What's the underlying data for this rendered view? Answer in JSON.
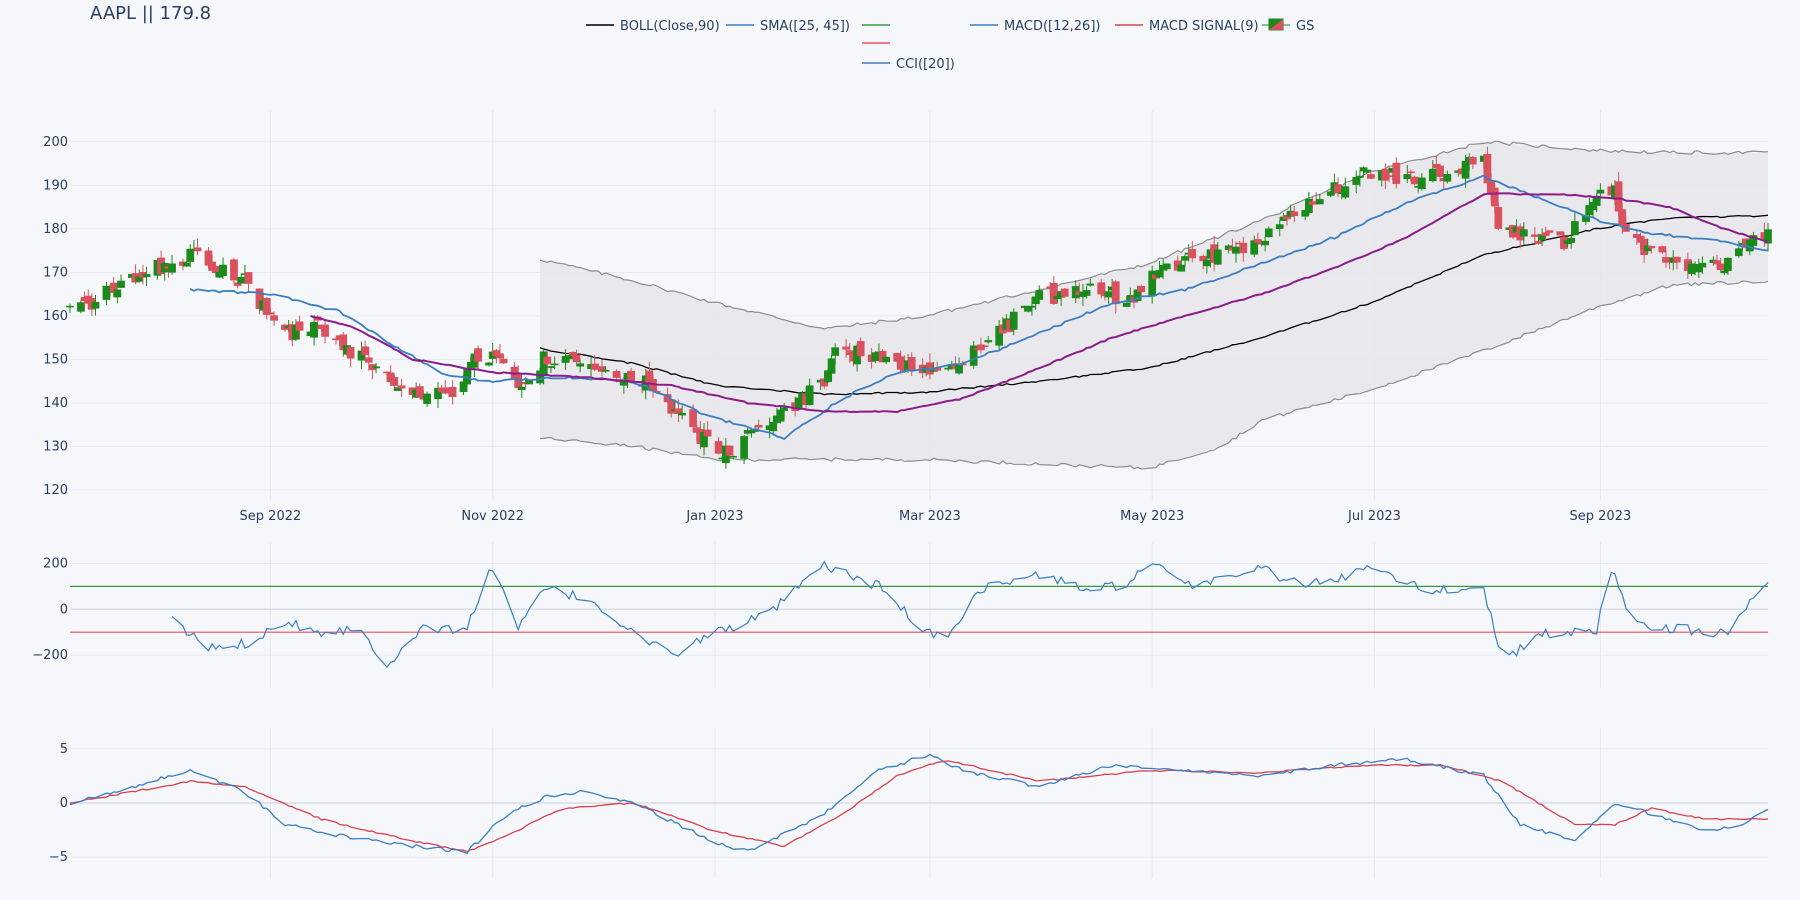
{
  "chart_data": {
    "type": "candlestick",
    "title": "AAPL || 179.8",
    "grid": true,
    "legend_placement": "top-center",
    "colors": {
      "increasing": "#1a8a1a",
      "decreasing": "#d9505e",
      "boll_mid": "#000000",
      "boll_band": "#8c8c8c",
      "boll_fill": "#e6e6ea",
      "sma25": "#3a7fc1",
      "sma45": "#8b1c8b",
      "cci": "#3a7fc1",
      "cci_upper": "#3a9a3a",
      "cci_lower": "#e25260",
      "macd": "#3a7fc1",
      "macd_signal": "#d9404e"
    },
    "legend": [
      {
        "label": "BOLL(Close,90)",
        "key": "boll_mid",
        "kind": "line"
      },
      {
        "label": "SMA([25, 45])",
        "key": "sma25",
        "kind": "line"
      },
      {
        "label": "",
        "key": "cci_upper",
        "kind": "line"
      },
      {
        "label": "",
        "key": "cci_lower",
        "kind": "line"
      },
      {
        "label": "CCI([20])",
        "key": "cci",
        "kind": "line"
      },
      {
        "label": "MACD([12,26])",
        "key": "macd",
        "kind": "line"
      },
      {
        "label": "MACD SIGNAL(9)",
        "key": "macd_signal",
        "kind": "line"
      },
      {
        "label": "GS",
        "key": "increasing",
        "kind": "candle"
      }
    ],
    "x_range": [
      "2022-07-08",
      "2023-10-17"
    ],
    "x_ticks": [
      {
        "date": "2022-09-01",
        "label": "Sep 2022"
      },
      {
        "date": "2022-11-01",
        "label": "Nov 2022"
      },
      {
        "date": "2023-01-01",
        "label": "Jan 2023"
      },
      {
        "date": "2023-03-01",
        "label": "Mar 2023"
      },
      {
        "date": "2023-05-01",
        "label": "May 2023"
      },
      {
        "date": "2023-07-01",
        "label": "Jul 2023"
      },
      {
        "date": "2023-09-01",
        "label": "Sep 2023"
      }
    ],
    "price_panel": {
      "ylim": [
        120,
        205
      ],
      "y_ticks": [
        120,
        130,
        140,
        150,
        160,
        170,
        180,
        190,
        200
      ],
      "close_anchors": [
        [
          "2022-07-08",
          161
        ],
        [
          "2022-07-20",
          166
        ],
        [
          "2022-08-01",
          171
        ],
        [
          "2022-08-12",
          174
        ],
        [
          "2022-08-25",
          168
        ],
        [
          "2022-09-05",
          156
        ],
        [
          "2022-09-14",
          158
        ],
        [
          "2022-09-28",
          149
        ],
        [
          "2022-10-05",
          144
        ],
        [
          "2022-10-12",
          141
        ],
        [
          "2022-10-20",
          142
        ],
        [
          "2022-10-26",
          149
        ],
        [
          "2022-11-02",
          152
        ],
        [
          "2022-11-08",
          142
        ],
        [
          "2022-11-15",
          150
        ],
        [
          "2022-11-25",
          149
        ],
        [
          "2022-12-05",
          146
        ],
        [
          "2022-12-15",
          144
        ],
        [
          "2022-12-28",
          132
        ],
        [
          "2023-01-03",
          128
        ],
        [
          "2023-01-10",
          132
        ],
        [
          "2023-01-20",
          137
        ],
        [
          "2023-01-31",
          145
        ],
        [
          "2023-02-03",
          153
        ],
        [
          "2023-02-10",
          151
        ],
        [
          "2023-02-22",
          149
        ],
        [
          "2023-03-02",
          147
        ],
        [
          "2023-03-10",
          150
        ],
        [
          "2023-03-20",
          156
        ],
        [
          "2023-03-31",
          164
        ],
        [
          "2023-04-14",
          166
        ],
        [
          "2023-04-25",
          164
        ],
        [
          "2023-05-05",
          172
        ],
        [
          "2023-05-19",
          174
        ],
        [
          "2023-05-31",
          178
        ],
        [
          "2023-06-14",
          186
        ],
        [
          "2023-06-30",
          193
        ],
        [
          "2023-07-14",
          191
        ],
        [
          "2023-07-31",
          196
        ],
        [
          "2023-08-04",
          182
        ],
        [
          "2023-08-11",
          178
        ],
        [
          "2023-08-22",
          177
        ],
        [
          "2023-08-31",
          187
        ],
        [
          "2023-09-05",
          189
        ],
        [
          "2023-09-08",
          178
        ],
        [
          "2023-09-15",
          175
        ],
        [
          "2023-09-26",
          172
        ],
        [
          "2023-10-03",
          171
        ],
        [
          "2023-10-17",
          179.8
        ]
      ],
      "sma25_anchors": [
        [
          "2022-08-10",
          166
        ],
        [
          "2022-09-01",
          165
        ],
        [
          "2022-09-20",
          161
        ],
        [
          "2022-10-05",
          153
        ],
        [
          "2022-10-20",
          146
        ],
        [
          "2022-11-01",
          145
        ],
        [
          "2022-11-20",
          146
        ],
        [
          "2022-12-10",
          145
        ],
        [
          "2022-12-30",
          137
        ],
        [
          "2023-01-20",
          132
        ],
        [
          "2023-02-05",
          141
        ],
        [
          "2023-02-20",
          147
        ],
        [
          "2023-03-10",
          149
        ],
        [
          "2023-03-31",
          156
        ],
        [
          "2023-04-20",
          163
        ],
        [
          "2023-05-10",
          166
        ],
        [
          "2023-05-31",
          172
        ],
        [
          "2023-06-20",
          178
        ],
        [
          "2023-07-10",
          186
        ],
        [
          "2023-07-31",
          192
        ],
        [
          "2023-08-15",
          187
        ],
        [
          "2023-08-31",
          182
        ],
        [
          "2023-09-15",
          179
        ],
        [
          "2023-10-05",
          177
        ],
        [
          "2023-10-17",
          175
        ]
      ],
      "sma45_anchors": [
        [
          "2022-09-12",
          160
        ],
        [
          "2022-09-25",
          157
        ],
        [
          "2022-10-10",
          150
        ],
        [
          "2022-11-01",
          147
        ],
        [
          "2022-11-25",
          146
        ],
        [
          "2022-12-20",
          144
        ],
        [
          "2023-01-10",
          140
        ],
        [
          "2023-02-01",
          138
        ],
        [
          "2023-02-20",
          138
        ],
        [
          "2023-03-10",
          141
        ],
        [
          "2023-03-31",
          148
        ],
        [
          "2023-04-20",
          155
        ],
        [
          "2023-05-10",
          160
        ],
        [
          "2023-05-31",
          165
        ],
        [
          "2023-06-20",
          171
        ],
        [
          "2023-07-10",
          178
        ],
        [
          "2023-07-31",
          188
        ],
        [
          "2023-08-20",
          188
        ],
        [
          "2023-09-05",
          187
        ],
        [
          "2023-09-20",
          185
        ],
        [
          "2023-10-05",
          180
        ],
        [
          "2023-10-17",
          177
        ]
      ],
      "boll_mid_anchors": [
        [
          "2022-11-14",
          152.5
        ],
        [
          "2022-12-10",
          149
        ],
        [
          "2023-01-01",
          144
        ],
        [
          "2023-01-31",
          142
        ],
        [
          "2023-02-28",
          142.5
        ],
        [
          "2023-03-31",
          145
        ],
        [
          "2023-04-30",
          148
        ],
        [
          "2023-05-31",
          155
        ],
        [
          "2023-06-30",
          163
        ],
        [
          "2023-07-31",
          174
        ],
        [
          "2023-08-31",
          180
        ],
        [
          "2023-09-20",
          182.5
        ],
        [
          "2023-10-17",
          183
        ]
      ],
      "boll_upper_anchors": [
        [
          "2022-11-14",
          173
        ],
        [
          "2022-12-10",
          168
        ],
        [
          "2023-01-01",
          163
        ],
        [
          "2023-01-31",
          157
        ],
        [
          "2023-02-28",
          160
        ],
        [
          "2023-03-31",
          166
        ],
        [
          "2023-04-30",
          172
        ],
        [
          "2023-05-31",
          182
        ],
        [
          "2023-06-30",
          193
        ],
        [
          "2023-07-31",
          200
        ],
        [
          "2023-08-31",
          198
        ],
        [
          "2023-09-20",
          197.5
        ],
        [
          "2023-10-17",
          197.5
        ]
      ],
      "boll_lower_anchors": [
        [
          "2022-11-14",
          132
        ],
        [
          "2022-12-10",
          130
        ],
        [
          "2023-01-01",
          127
        ],
        [
          "2023-01-31",
          127
        ],
        [
          "2023-02-28",
          127
        ],
        [
          "2023-03-31",
          126
        ],
        [
          "2023-04-30",
          125
        ],
        [
          "2023-05-20",
          130
        ],
        [
          "2023-05-31",
          136
        ],
        [
          "2023-06-30",
          143
        ],
        [
          "2023-07-31",
          152
        ],
        [
          "2023-08-31",
          162
        ],
        [
          "2023-09-20",
          167
        ],
        [
          "2023-10-17",
          168
        ]
      ]
    },
    "cci_panel": {
      "ylim": [
        -300,
        250
      ],
      "y_ticks": [
        -200,
        0,
        200
      ],
      "upper_level": 100,
      "lower_level": -100,
      "anchors": [
        [
          "2022-08-05",
          -50
        ],
        [
          "2022-08-15",
          -170
        ],
        [
          "2022-08-25",
          -150
        ],
        [
          "2022-09-05",
          -50
        ],
        [
          "2022-09-15",
          -100
        ],
        [
          "2022-09-25",
          -80
        ],
        [
          "2022-10-03",
          -240
        ],
        [
          "2022-10-12",
          -90
        ],
        [
          "2022-10-25",
          -80
        ],
        [
          "2022-11-01",
          190
        ],
        [
          "2022-11-08",
          -90
        ],
        [
          "2022-11-15",
          90
        ],
        [
          "2022-11-28",
          40
        ],
        [
          "2022-12-10",
          -110
        ],
        [
          "2022-12-20",
          -200
        ],
        [
          "2023-01-01",
          -100
        ],
        [
          "2023-01-15",
          -30
        ],
        [
          "2023-01-31",
          190
        ],
        [
          "2023-02-15",
          100
        ],
        [
          "2023-02-28",
          -100
        ],
        [
          "2023-03-05",
          -130
        ],
        [
          "2023-03-15",
          90
        ],
        [
          "2023-03-31",
          150
        ],
        [
          "2023-04-15",
          80
        ],
        [
          "2023-04-25",
          120
        ],
        [
          "2023-05-01",
          200
        ],
        [
          "2023-05-10",
          100
        ],
        [
          "2023-05-31",
          180
        ],
        [
          "2023-06-10",
          110
        ],
        [
          "2023-06-20",
          120
        ],
        [
          "2023-06-30",
          200
        ],
        [
          "2023-07-15",
          80
        ],
        [
          "2023-07-31",
          100
        ],
        [
          "2023-08-05",
          -240
        ],
        [
          "2023-08-15",
          -110
        ],
        [
          "2023-08-31",
          -100
        ],
        [
          "2023-09-03",
          220
        ],
        [
          "2023-09-10",
          -60
        ],
        [
          "2023-09-20",
          -80
        ],
        [
          "2023-10-05",
          -110
        ],
        [
          "2023-10-17",
          130
        ]
      ]
    },
    "macd_panel": {
      "ylim": [
        -6,
        6
      ],
      "y_ticks": [
        -5,
        0,
        5
      ],
      "macd_anchors": [
        [
          "2022-07-08",
          0
        ],
        [
          "2022-07-25",
          1.5
        ],
        [
          "2022-08-10",
          3
        ],
        [
          "2022-08-25",
          1
        ],
        [
          "2022-09-05",
          -2
        ],
        [
          "2022-09-20",
          -3
        ],
        [
          "2022-10-10",
          -4
        ],
        [
          "2022-10-25",
          -4.5
        ],
        [
          "2022-11-05",
          -1
        ],
        [
          "2022-11-15",
          0.5
        ],
        [
          "2022-11-25",
          1
        ],
        [
          "2022-12-10",
          0
        ],
        [
          "2022-12-31",
          -3.5
        ],
        [
          "2023-01-10",
          -4.5
        ],
        [
          "2023-01-31",
          -1
        ],
        [
          "2023-02-15",
          3
        ],
        [
          "2023-03-01",
          4.5
        ],
        [
          "2023-03-10",
          3
        ],
        [
          "2023-03-31",
          1.5
        ],
        [
          "2023-04-20",
          3.5
        ],
        [
          "2023-05-10",
          3
        ],
        [
          "2023-05-31",
          2.5
        ],
        [
          "2023-06-20",
          3.5
        ],
        [
          "2023-07-10",
          4
        ],
        [
          "2023-07-31",
          2.5
        ],
        [
          "2023-08-10",
          -2
        ],
        [
          "2023-08-25",
          -3.5
        ],
        [
          "2023-09-05",
          0
        ],
        [
          "2023-09-15",
          -1
        ],
        [
          "2023-09-30",
          -2.5
        ],
        [
          "2023-10-10",
          -2
        ],
        [
          "2023-10-17",
          -0.5
        ]
      ],
      "signal_anchors": [
        [
          "2022-07-08",
          0
        ],
        [
          "2022-08-10",
          2
        ],
        [
          "2022-08-25",
          1.5
        ],
        [
          "2022-09-15",
          -1.5
        ],
        [
          "2022-10-10",
          -3.5
        ],
        [
          "2022-10-25",
          -4.5
        ],
        [
          "2022-11-05",
          -3
        ],
        [
          "2022-11-20",
          -0.5
        ],
        [
          "2022-12-10",
          0
        ],
        [
          "2022-12-31",
          -2.5
        ],
        [
          "2023-01-20",
          -4
        ],
        [
          "2023-02-05",
          -1
        ],
        [
          "2023-02-20",
          2.5
        ],
        [
          "2023-03-05",
          4
        ],
        [
          "2023-03-31",
          2
        ],
        [
          "2023-04-30",
          3
        ],
        [
          "2023-05-31",
          2.8
        ],
        [
          "2023-06-30",
          3.5
        ],
        [
          "2023-07-20",
          3.5
        ],
        [
          "2023-08-05",
          2
        ],
        [
          "2023-08-25",
          -2
        ],
        [
          "2023-09-05",
          -2
        ],
        [
          "2023-09-15",
          -0.5
        ],
        [
          "2023-09-30",
          -1.5
        ],
        [
          "2023-10-17",
          -1.5
        ]
      ]
    }
  }
}
